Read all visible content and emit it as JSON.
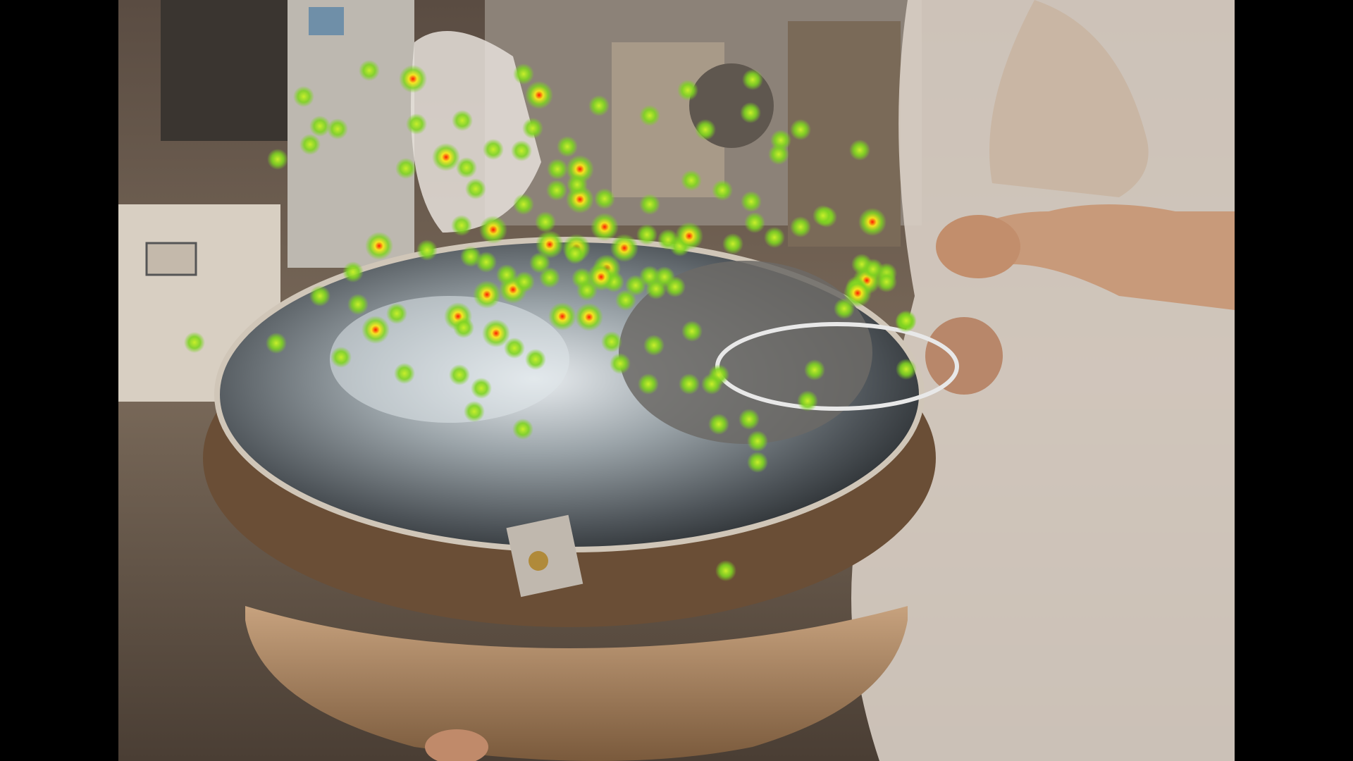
{
  "image": {
    "subject": "factory-worker-at-rotating-steel-table-with-gaze-heatmap",
    "letterbox_color": "#000000"
  },
  "heatmap": {
    "colors": {
      "low": "#7ed321",
      "mid": "#f8e71c",
      "high": "#ff1a00"
    }
  }
}
